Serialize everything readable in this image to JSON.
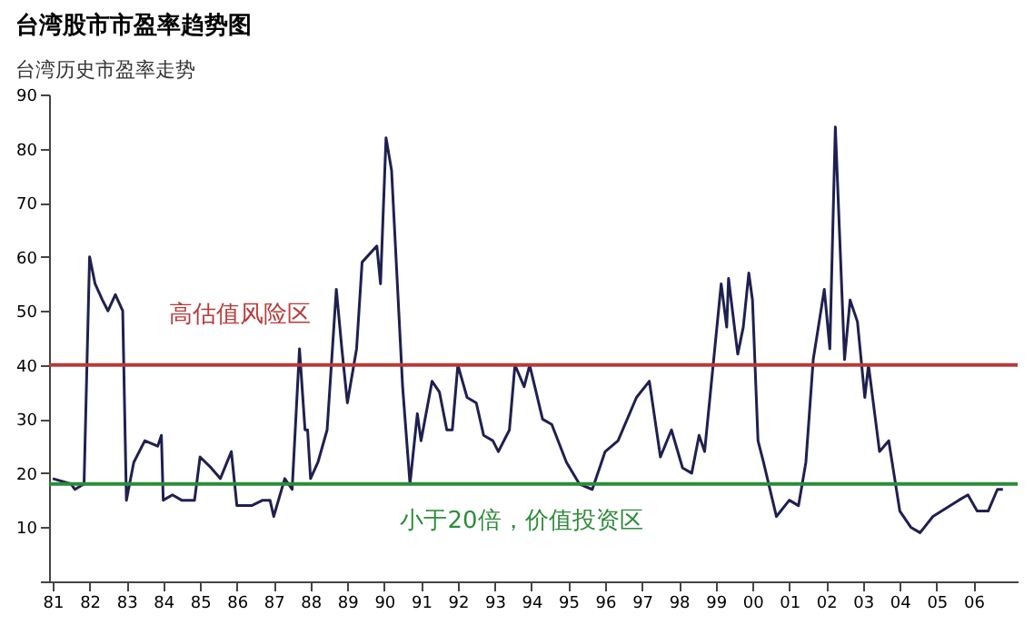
{
  "chart_data": {
    "type": "line",
    "title": "台湾股市市盈率趋势图",
    "subtitle": "台湾历史市盈率走势",
    "series": [
      {
        "color": "#1f2050",
        "x": [
          1981.0,
          1981.5,
          1981.6,
          1981.85,
          1982.0,
          1982.15,
          1982.35,
          1982.5,
          1982.7,
          1982.9,
          1983.0,
          1983.2,
          1983.5,
          1983.85,
          1983.95,
          1984.0,
          1984.25,
          1984.5,
          1984.85,
          1985.0,
          1985.3,
          1985.55,
          1985.85,
          1986.0,
          1986.4,
          1986.7,
          1986.9,
          1987.0,
          1987.3,
          1987.5,
          1987.7,
          1987.85,
          1987.92,
          1988.0,
          1988.2,
          1988.45,
          1988.7,
          1988.85,
          1989.0,
          1989.25,
          1989.4,
          1989.8,
          1989.9,
          1990.05,
          1990.2,
          1990.5,
          1990.7,
          1990.9,
          1991.0,
          1991.3,
          1991.5,
          1991.7,
          1991.85,
          1992.0,
          1992.25,
          1992.5,
          1992.7,
          1992.95,
          1993.1,
          1993.4,
          1993.55,
          1993.8,
          1993.95,
          1994.3,
          1994.55,
          1994.95,
          1995.3,
          1995.65,
          1996.0,
          1996.35,
          1996.85,
          1997.2,
          1997.5,
          1997.8,
          1998.1,
          1998.35,
          1998.55,
          1998.7,
          1999.15,
          1999.3,
          1999.35,
          1999.6,
          1999.75,
          1999.9,
          2000.0,
          2000.15,
          2000.3,
          2000.65,
          2001.0,
          2001.25,
          2001.45,
          2001.65,
          2001.95,
          2002.1,
          2002.25,
          2002.5,
          2002.65,
          2002.85,
          2003.05,
          2003.15,
          2003.45,
          2003.7,
          2004.0,
          2004.3,
          2004.55,
          2004.9,
          2005.6,
          2005.85,
          2006.1,
          2006.4,
          2006.65,
          2006.8
        ],
        "values": [
          19,
          18,
          17,
          18,
          60,
          55,
          52,
          50,
          53,
          50,
          15,
          22,
          26,
          25,
          27,
          15,
          16,
          15,
          15,
          23,
          21,
          19,
          24,
          14,
          14,
          15,
          15,
          12,
          19,
          17,
          43,
          28,
          28,
          19,
          22,
          28,
          54,
          43,
          33,
          43,
          59,
          62,
          55,
          82,
          76,
          36,
          18,
          31,
          26,
          37,
          35,
          28,
          28,
          40,
          34,
          33,
          27,
          26,
          24,
          28,
          40,
          36,
          40,
          30,
          29,
          22,
          18,
          17,
          24,
          26,
          34,
          37,
          23,
          28,
          21,
          20,
          27,
          24,
          55,
          47,
          56,
          42,
          47,
          57,
          52,
          26,
          22,
          12,
          15,
          14,
          22,
          41,
          54,
          43,
          84,
          41,
          52,
          48,
          34,
          40,
          24,
          26,
          13,
          10,
          9,
          12,
          15,
          16,
          13,
          13,
          17,
          17
        ]
      }
    ],
    "xlim": [
      1980.9,
      2007.2
    ],
    "xticks": [
      {
        "value": 1981,
        "label": "81"
      },
      {
        "value": 1982,
        "label": "82"
      },
      {
        "value": 1983,
        "label": "83"
      },
      {
        "value": 1984,
        "label": "84"
      },
      {
        "value": 1985,
        "label": "85"
      },
      {
        "value": 1986,
        "label": "86"
      },
      {
        "value": 1987,
        "label": "87"
      },
      {
        "value": 1988,
        "label": "88"
      },
      {
        "value": 1989,
        "label": "89"
      },
      {
        "value": 1990,
        "label": "90"
      },
      {
        "value": 1991,
        "label": "91"
      },
      {
        "value": 1992,
        "label": "92"
      },
      {
        "value": 1993,
        "label": "93"
      },
      {
        "value": 1994,
        "label": "94"
      },
      {
        "value": 1995,
        "label": "95"
      },
      {
        "value": 1996,
        "label": "96"
      },
      {
        "value": 1997,
        "label": "97"
      },
      {
        "value": 1998,
        "label": "98"
      },
      {
        "value": 1999,
        "label": "99"
      },
      {
        "value": 2000,
        "label": "00"
      },
      {
        "value": 2001,
        "label": "01"
      },
      {
        "value": 2002,
        "label": "02"
      },
      {
        "value": 2003,
        "label": "03"
      },
      {
        "value": 2004,
        "label": "04"
      },
      {
        "value": 2005,
        "label": "05"
      },
      {
        "value": 2006,
        "label": "06"
      }
    ],
    "ylim": [
      0,
      90
    ],
    "yticks": [
      {
        "value": 0,
        "label": null
      },
      10,
      20,
      30,
      40,
      50,
      60,
      70,
      80,
      90
    ],
    "ref_lines": [
      {
        "axis": "y",
        "value": 40,
        "label": "高估值风险区",
        "color": "#b83a3a"
      },
      {
        "axis": "y",
        "value": 18,
        "label": "小于20倍，价值投资区",
        "color": "#2e8b3a"
      }
    ],
    "grid": false
  }
}
